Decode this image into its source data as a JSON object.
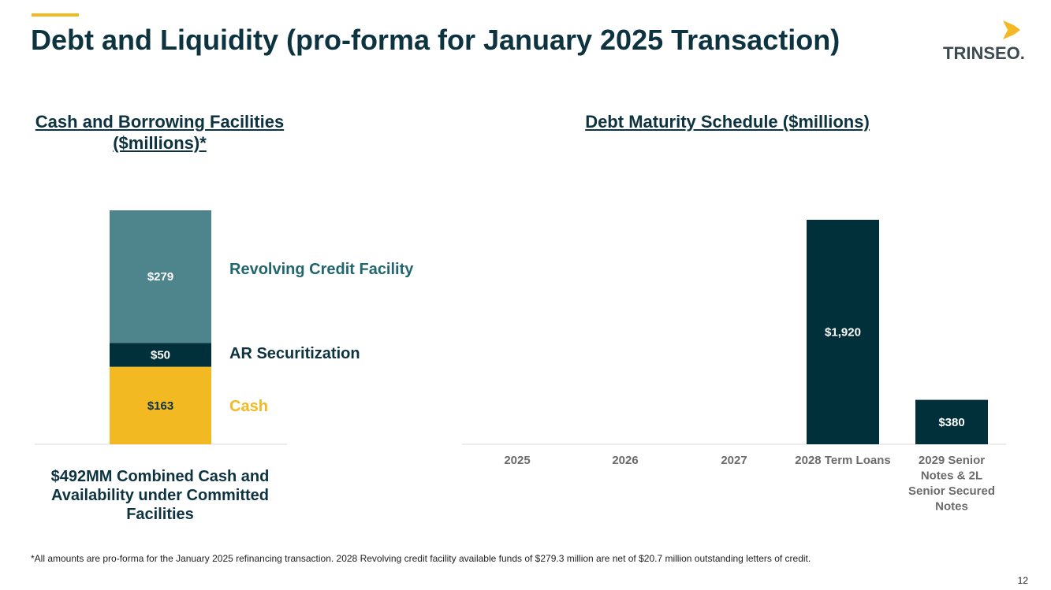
{
  "slide": {
    "title": "Debt and Liquidity (pro-forma for January 2025 Transaction)",
    "logo_text": "TRINSEO.",
    "footnote": "*All amounts are pro-forma for the January 2025 refinancing transaction. 2028 Revolving credit facility available funds of $279.3 million are net of $20.7 million outstanding letters of credit.",
    "page_number": "12"
  },
  "colors": {
    "navy": "#02303a",
    "teal": "#4e848c",
    "gold": "#f3b922",
    "title": "#0d3340"
  },
  "chart_data": [
    {
      "type": "bar",
      "stacked": true,
      "title": "Cash and Borrowing Facilities ($millions)*",
      "categories": [
        ""
      ],
      "series": [
        {
          "name": "Cash",
          "values": [
            163
          ],
          "value_labels": [
            "$163"
          ],
          "color": "#f3b922",
          "label_color": "#0d3340"
        },
        {
          "name": "AR Securitization",
          "values": [
            50
          ],
          "value_labels": [
            "$50"
          ],
          "color": "#02303a",
          "label_color": "#0d3340"
        },
        {
          "name": "Revolving Credit Facility",
          "values": [
            279
          ],
          "value_labels": [
            "$279"
          ],
          "color": "#4e848c",
          "label_color": "#21666e"
        }
      ],
      "caption": "$492MM Combined Cash and Availability under Committed Facilities",
      "ylim": [
        0,
        492
      ],
      "grid": false
    },
    {
      "type": "bar",
      "title": "Debt Maturity Schedule ($millions)",
      "categories": [
        "2025",
        "2026",
        "2027",
        "2028 Term Loans",
        "2029 Senior Notes & 2L Senior Secured Notes"
      ],
      "category_lines": [
        [
          "2025"
        ],
        [
          "2026"
        ],
        [
          "2027"
        ],
        [
          "2028 Term Loans"
        ],
        [
          "2029 Senior",
          "Notes & 2L",
          "Senior Secured",
          "Notes"
        ]
      ],
      "values": [
        0,
        0,
        0,
        1920,
        380
      ],
      "value_labels": [
        "",
        "",
        "",
        "$1,920",
        "$380"
      ],
      "color": "#02303a",
      "ylim": [
        0,
        1920
      ],
      "grid": false
    }
  ]
}
